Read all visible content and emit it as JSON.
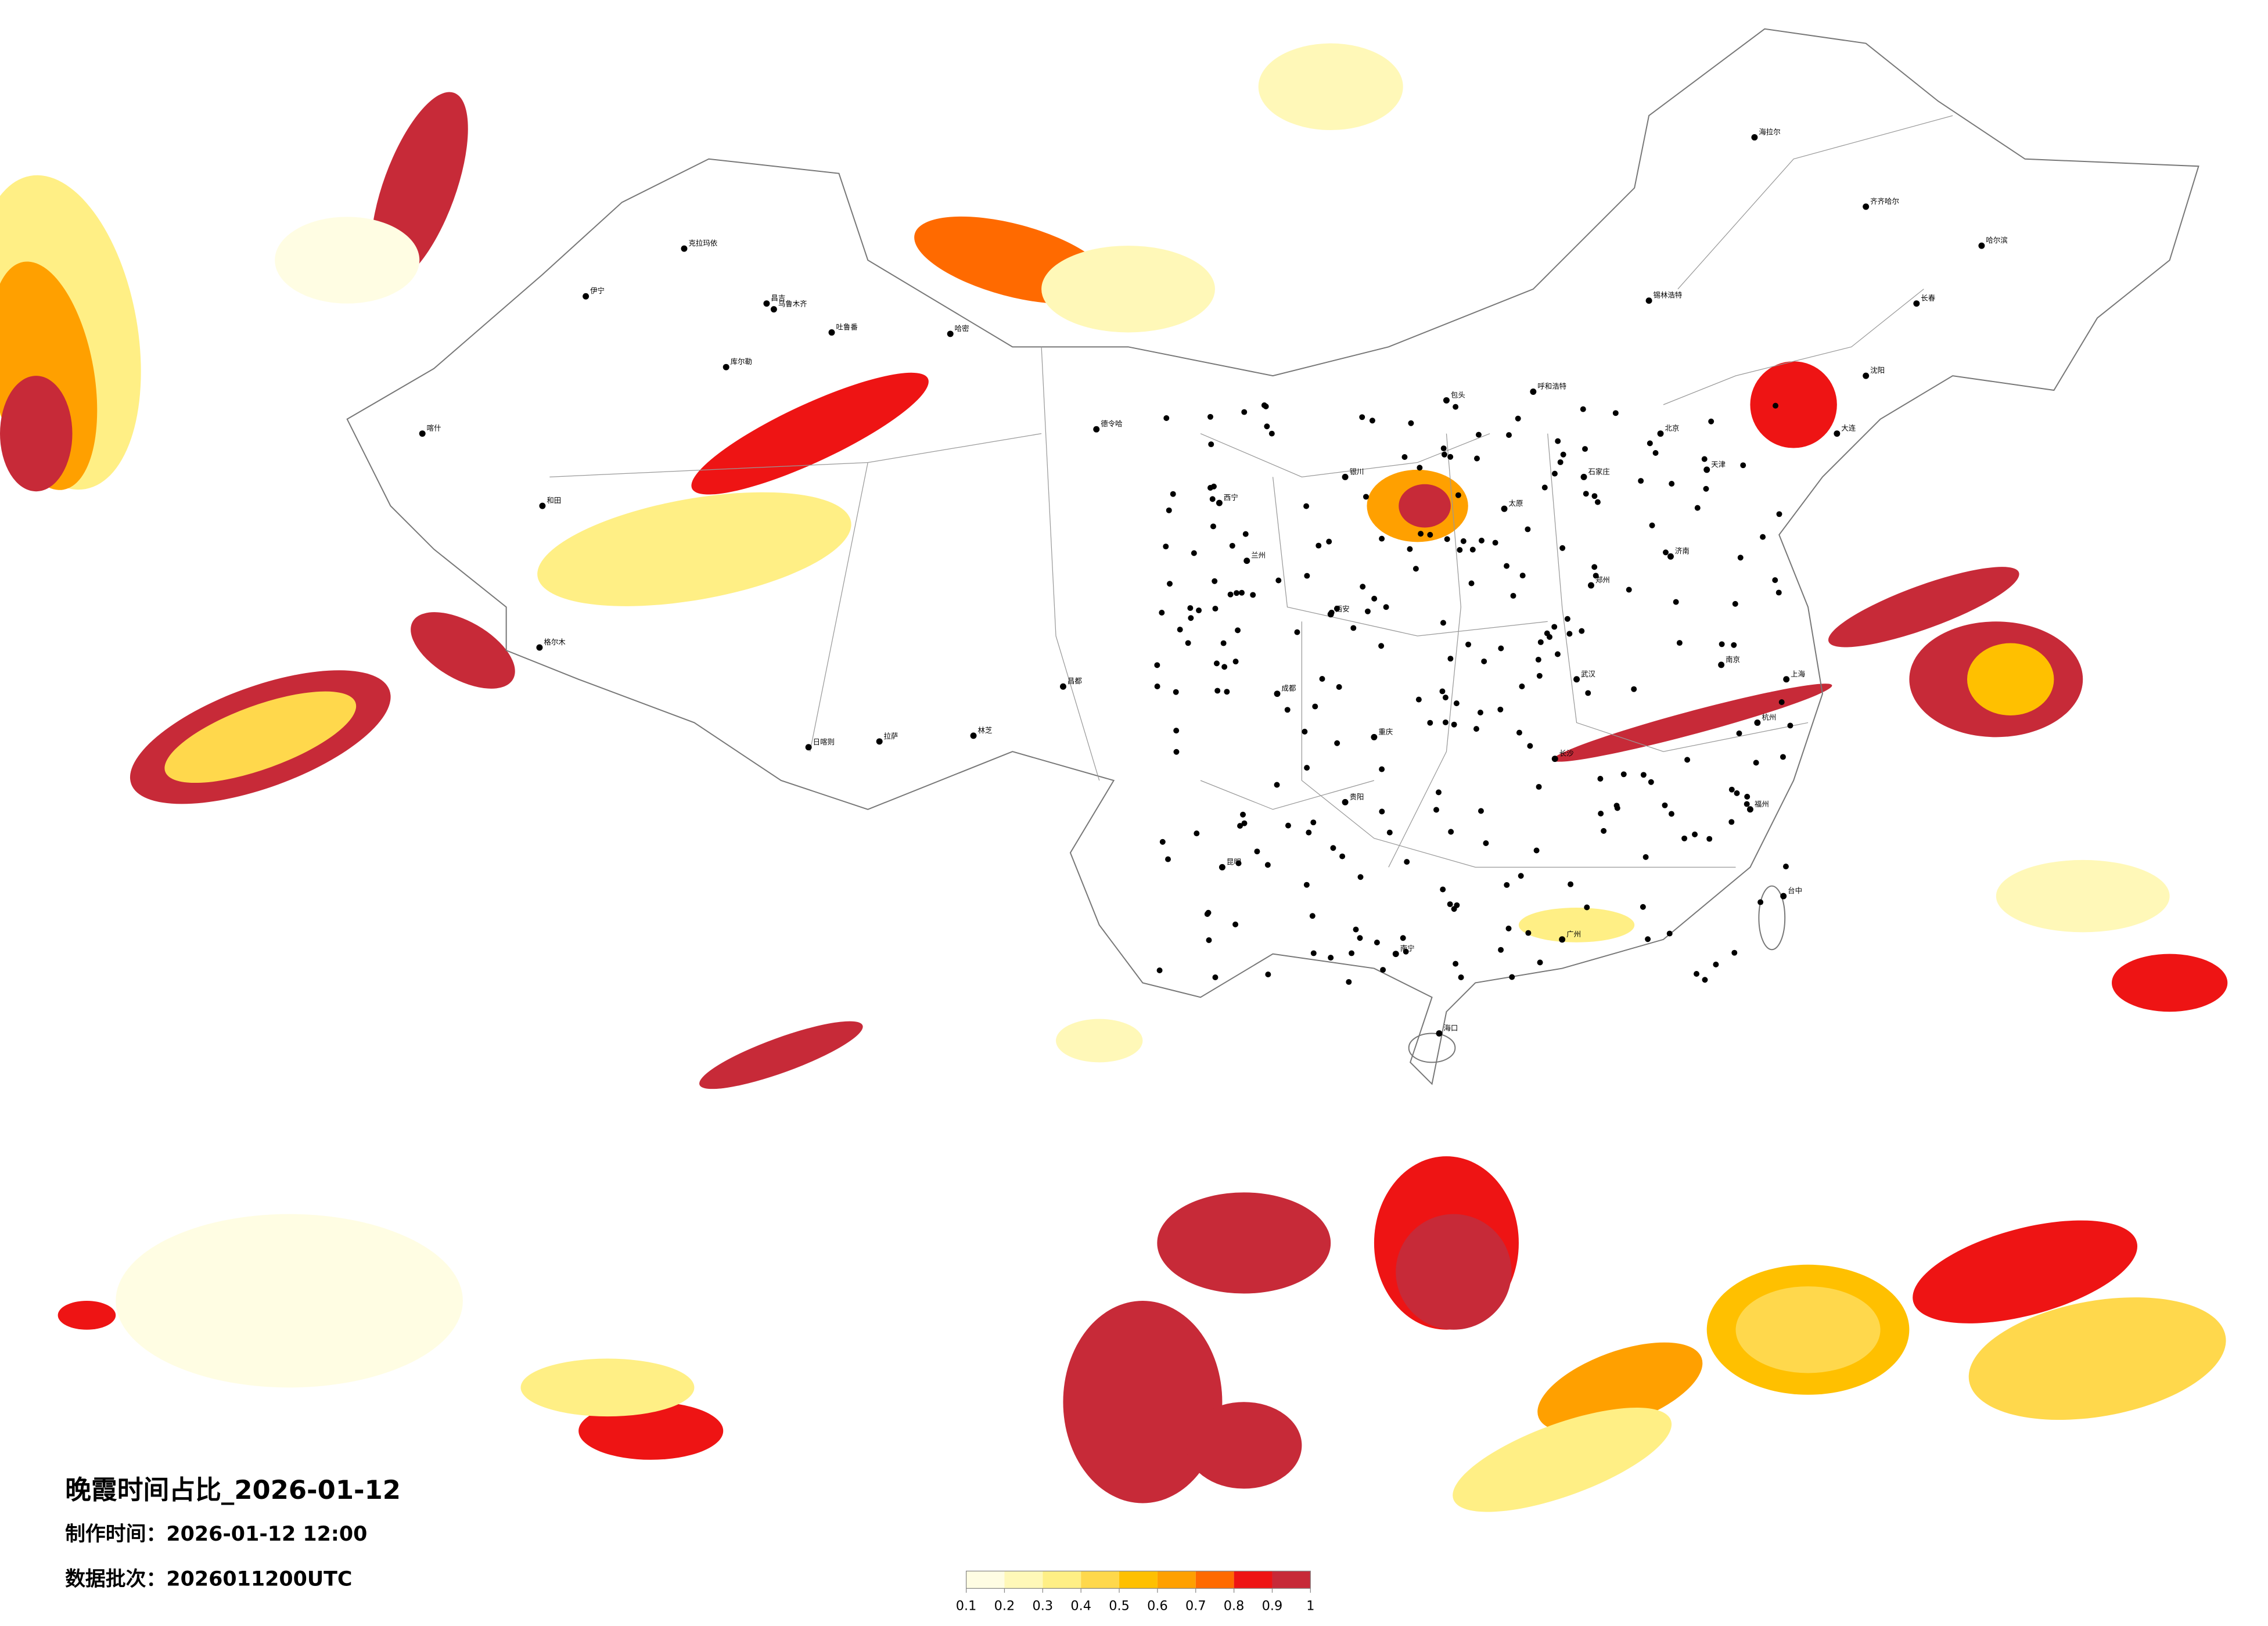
{
  "title": "晚霞时间占比_2026-01-12",
  "made_time": "制作时间：2026-01-12 12:00",
  "data_batch": "数据批次：2026011200UTC",
  "legend": {
    "ticks": [
      0.1,
      0.2,
      0.3,
      0.4,
      0.5,
      0.6,
      0.7,
      0.8,
      0.9,
      1
    ],
    "colors": [
      "#fffde3",
      "#fff8b8",
      "#ffef85",
      "#ffd84c",
      "#ffc000",
      "#ffa000",
      "#ff6a00",
      "#ee1414",
      "#c72a38"
    ]
  },
  "cities": [
    "克拉玛依",
    "伊宁",
    "昌吉",
    "乌鲁木齐",
    "吐鲁番",
    "哈密",
    "库尔勒",
    "和田",
    "喀什",
    "格尔木",
    "德令哈",
    "日喀则",
    "拉萨",
    "林芝",
    "昌都",
    "西宁",
    "兰州",
    "银川",
    "呼和浩特",
    "包头",
    "北京",
    "天津",
    "石家庄",
    "太原",
    "济南",
    "郑州",
    "西安",
    "成都",
    "重庆",
    "武汉",
    "长沙",
    "南京",
    "上海",
    "杭州",
    "福州",
    "广州",
    "南宁",
    "昆明",
    "贵阳",
    "海口",
    "哈尔滨",
    "长春",
    "沈阳",
    "大连",
    "齐齐哈尔",
    "海拉尔",
    "台中",
    "锡林浩特"
  ]
}
